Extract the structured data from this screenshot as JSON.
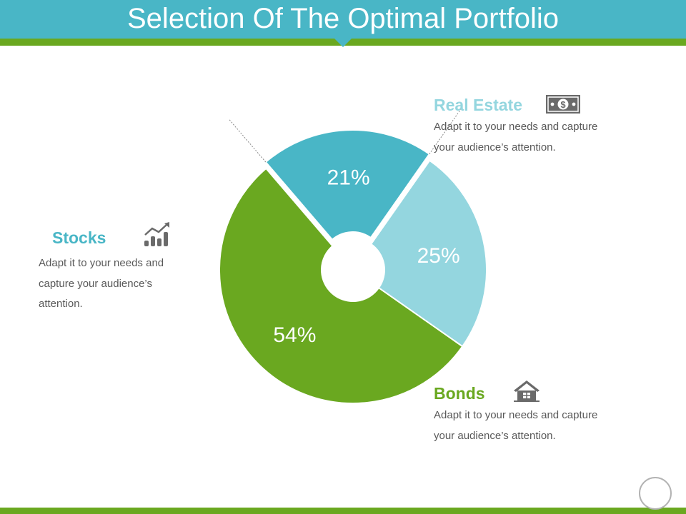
{
  "title": "Selection Of The Optimal Portfolio",
  "colors": {
    "title_bar": "#49b6c6",
    "accent": "#6aa820",
    "stocks": "#49b6c6",
    "real_estate": "#94d6df",
    "bonds": "#6aa820",
    "text": "#595959",
    "icon": "#6a6a6a"
  },
  "segments": {
    "stocks": {
      "heading": "Stocks",
      "description": "Adapt it to your needs and capture your audience’s attention.",
      "icon": "bar-chart-trend-icon"
    },
    "real_estate": {
      "heading": "Real Estate",
      "description": "Adapt it to your needs and capture your audience’s attention.",
      "icon": "dollar-bill-icon"
    },
    "bonds": {
      "heading": "Bonds",
      "description": "Adapt it to your needs and capture your audience’s attention.",
      "icon": "house-icon"
    }
  },
  "chart_data": {
    "type": "pie",
    "title": "",
    "legend": "none",
    "slices": [
      {
        "label": "Real Estate",
        "value": 25,
        "value_label": "25%",
        "color": "#94d6df"
      },
      {
        "label": "Bonds",
        "value": 54,
        "value_label": "54%",
        "color": "#6aa820"
      },
      {
        "label": "Stocks",
        "value": 21,
        "value_label": "21%",
        "color": "#49b6c6",
        "exploded": true
      }
    ]
  }
}
